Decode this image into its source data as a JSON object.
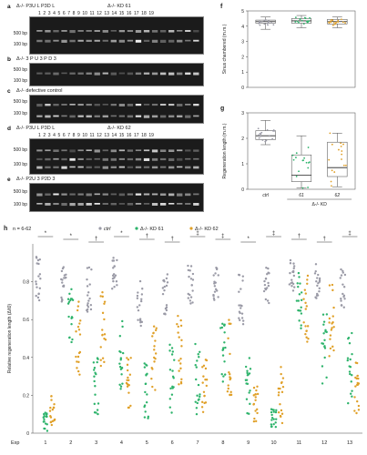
{
  "panels": {
    "a": {
      "letter": "a",
      "caption_line": "Δ-/-  P3U L  P3D L",
      "lanes_text": "1  2  3  4  5  6  7  8  9  10  11  12  13  14  15  16  17  18  19",
      "right_label": "Δ-/-  KD 61",
      "markers": [
        "500 bp",
        "100 bp"
      ]
    },
    "b": {
      "letter": "b",
      "caption_line": "Δ-/-  3  P  U  3  P  D  3",
      "markers": [
        "500 bp",
        "100 bp"
      ]
    },
    "c": {
      "letter": "c",
      "caption_line": "Δ-/- defective control",
      "markers": [
        "500 bp",
        "100 bp"
      ]
    },
    "d": {
      "letter": "d",
      "caption_line": "Δ-/-  P3U L  P3D L",
      "right_label": "Δ-/-  KD 62",
      "lanes_text": "1  2  3  4  5  6  7  8  9  10  11  12  13  14  15  16  17  18  19",
      "markers": [
        "500 bp",
        "100 bp"
      ]
    },
    "e": {
      "letter": "e",
      "caption_line": "Δ-/-  P2U 3  P2D 3",
      "markers": [
        "500 bp",
        "100 bp"
      ]
    },
    "f": {
      "letter": "f",
      "ylabel": "Sinus chambered (m.m.)"
    },
    "g": {
      "letter": "g",
      "ylabel": "Regeneration length (m.m.)",
      "categories": [
        "ctrl",
        "61",
        "62"
      ],
      "group_label": "Δ-/- KD"
    },
    "h": {
      "letter": "h",
      "n_label": "n = 6-62",
      "legend": [
        "ctrl",
        "Δ-/- KD 61",
        "Δ-/- KD 62"
      ],
      "ylabel": "Relative regeneration length (Δ/t0)",
      "xlabel_prefix": "Exp"
    }
  },
  "colors": {
    "ctrl": "#9a9aa6",
    "kd61": "#2db36b",
    "kd62": "#e0a028",
    "gel": "#1b1b1b"
  },
  "chart_data": [
    {
      "type": "box",
      "panel": "f",
      "title": "",
      "ylabel": "Sinus chambered (m.m.)",
      "ylim": [
        0,
        5
      ],
      "yticks": [
        0,
        1,
        2,
        3,
        4,
        5
      ],
      "categories": [
        "ctrl",
        "61",
        "62"
      ],
      "series": [
        {
          "name": "ctrl",
          "median": 4.3,
          "q1": 4.2,
          "q3": 4.4,
          "min": 3.8,
          "max": 4.6
        },
        {
          "name": "61",
          "median": 4.35,
          "q1": 4.2,
          "q3": 4.5,
          "min": 3.9,
          "max": 4.7
        },
        {
          "name": "62",
          "median": 4.3,
          "q1": 4.15,
          "q3": 4.45,
          "min": 3.9,
          "max": 4.6
        }
      ]
    },
    {
      "type": "box",
      "panel": "g",
      "title": "",
      "ylabel": "Regeneration length (m.m.)",
      "ylim": [
        0,
        3
      ],
      "yticks": [
        0,
        1,
        2,
        3
      ],
      "categories": [
        "ctrl",
        "61",
        "62"
      ],
      "series": [
        {
          "name": "ctrl",
          "median": 2.1,
          "q1": 1.95,
          "q3": 2.3,
          "min": 1.75,
          "max": 2.7
        },
        {
          "name": "61",
          "median": 0.55,
          "q1": 0.3,
          "q3": 1.35,
          "min": 0.05,
          "max": 2.1
        },
        {
          "name": "62",
          "median": 0.85,
          "q1": 0.5,
          "q3": 1.85,
          "min": 0.1,
          "max": 2.2
        }
      ]
    },
    {
      "type": "scatter",
      "panel": "h",
      "title": "",
      "ylabel": "Relative regeneration length (Δ/t0)",
      "ylim": [
        0,
        1
      ],
      "yticks": [
        0,
        0.2,
        0.4,
        0.6,
        0.8
      ],
      "x": [
        "1",
        "2",
        "3",
        "4",
        "5",
        "6",
        "7",
        "8",
        "9",
        "10",
        "11",
        "12",
        "13"
      ],
      "significance": [
        "*",
        "*",
        "†",
        "*",
        "†",
        "†",
        "‡",
        "‡",
        "*",
        "‡",
        "†",
        "†",
        "‡"
      ],
      "series": [
        {
          "name": "ctrl",
          "centers": [
            0.82,
            0.78,
            0.76,
            0.85,
            0.7,
            0.74,
            0.78,
            0.8,
            0.7,
            0.78,
            0.85,
            0.8,
            0.75
          ],
          "spreads": [
            0.12,
            0.1,
            0.12,
            0.1,
            0.15,
            0.12,
            0.12,
            0.1,
            0.14,
            0.1,
            0.1,
            0.1,
            0.12
          ]
        },
        {
          "name": "Δ-/- KD 61",
          "centers": [
            0.06,
            0.62,
            0.25,
            0.4,
            0.22,
            0.3,
            0.3,
            0.45,
            0.25,
            0.08,
            0.7,
            0.45,
            0.35
          ],
          "spreads": [
            0.05,
            0.15,
            0.15,
            0.2,
            0.15,
            0.2,
            0.2,
            0.2,
            0.15,
            0.05,
            0.15,
            0.2,
            0.2
          ]
        },
        {
          "name": "Δ-/- KD 62",
          "centers": [
            0.12,
            0.5,
            0.55,
            0.25,
            0.38,
            0.42,
            0.25,
            0.4,
            0.15,
            0.2,
            0.65,
            0.6,
            0.25
          ],
          "spreads": [
            0.08,
            0.2,
            0.2,
            0.15,
            0.2,
            0.2,
            0.15,
            0.2,
            0.1,
            0.15,
            0.2,
            0.2,
            0.15
          ]
        }
      ]
    }
  ]
}
